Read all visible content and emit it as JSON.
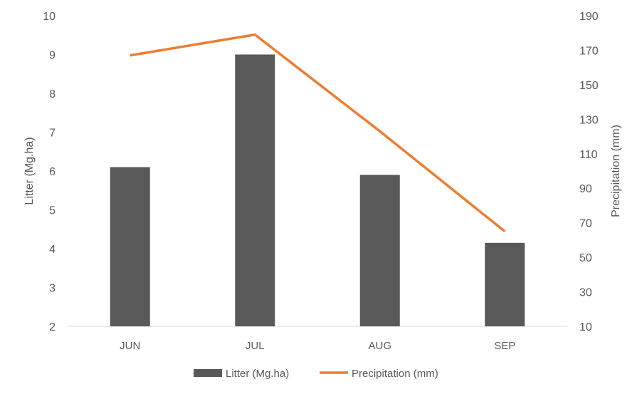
{
  "chart_data": {
    "type": "bar",
    "categories": [
      "JUN",
      "JUL",
      "AUG",
      "SEP"
    ],
    "series": [
      {
        "name": "Litter (Mg.ha)",
        "type": "bar",
        "axis": "left",
        "color": "#595959",
        "values": [
          6.1,
          9.0,
          5.9,
          4.15
        ]
      },
      {
        "name": "Precipitation (mm)",
        "type": "line",
        "axis": "right",
        "color": "#ED7D31",
        "values": [
          167,
          179,
          123,
          65
        ]
      }
    ],
    "ylabel": "Litter (Mg.ha)",
    "y2label": "Precipitation (mm)",
    "ylim": [
      2,
      10
    ],
    "yticks": [
      2,
      3,
      4,
      5,
      6,
      7,
      8,
      9,
      10
    ],
    "y2lim": [
      10,
      190
    ],
    "y2ticks": [
      10,
      30,
      50,
      70,
      90,
      110,
      130,
      150,
      170,
      190
    ],
    "grid": false,
    "legend": "bottom"
  }
}
